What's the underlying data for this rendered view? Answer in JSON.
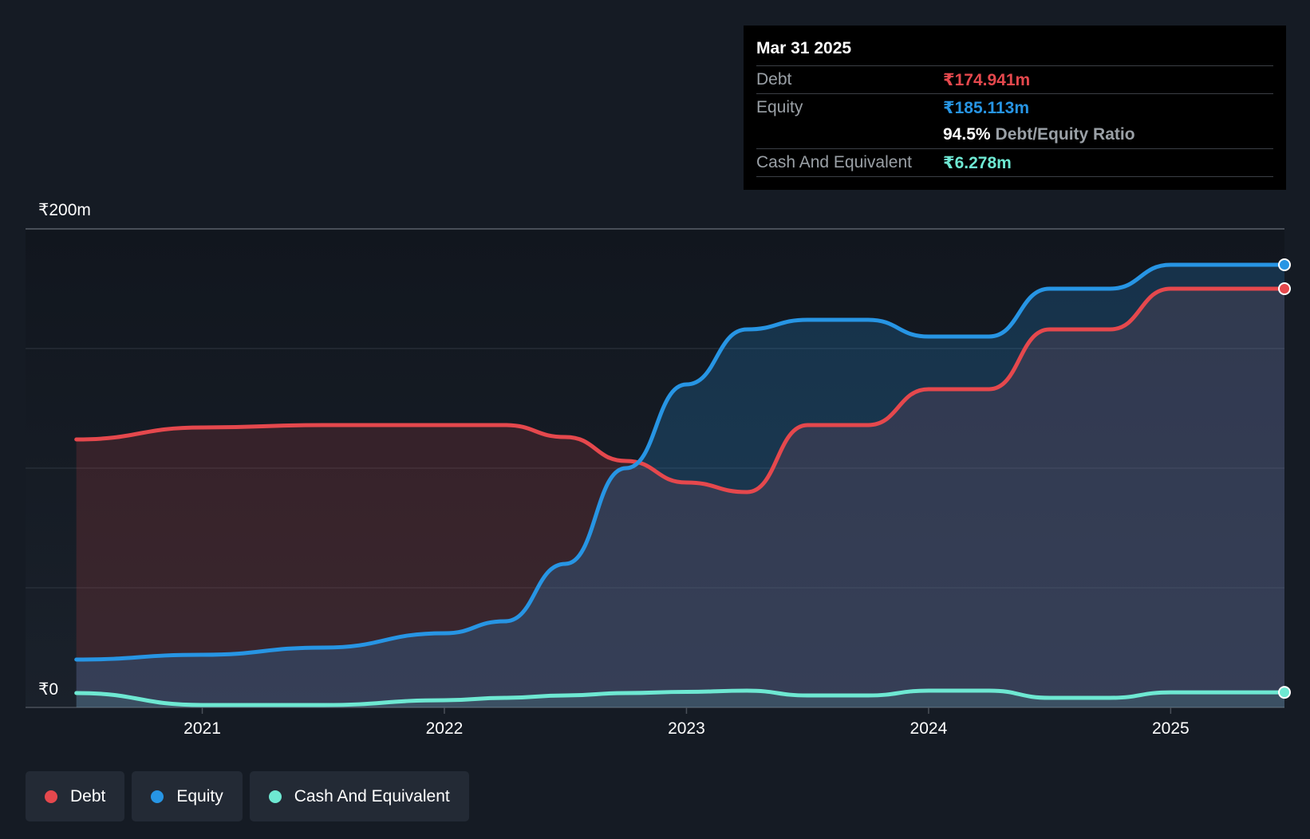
{
  "colors": {
    "debt": "#e5484d",
    "equity": "#2795e4",
    "cash": "#6ee8d2",
    "background": "#151b24"
  },
  "tooltip": {
    "date": "Mar 31 2025",
    "debt_label": "Debt",
    "debt_value": "₹174.941m",
    "equity_label": "Equity",
    "equity_value": "₹185.113m",
    "ratio_value": "94.5%",
    "ratio_label": "Debt/Equity Ratio",
    "cash_label": "Cash And Equivalent",
    "cash_value": "₹6.278m"
  },
  "legend": [
    {
      "label": "Debt",
      "color": "#e5484d"
    },
    {
      "label": "Equity",
      "color": "#2795e4"
    },
    {
      "label": "Cash And Equivalent",
      "color": "#6ee8d2"
    }
  ],
  "chart_data": {
    "type": "area",
    "y_labels": [
      "₹200m",
      "₹0"
    ],
    "ylim": [
      0,
      200
    ],
    "x_ticks": [
      "2021",
      "2022",
      "2023",
      "2024",
      "2025"
    ],
    "xlim": [
      2020.27,
      2025.47
    ],
    "grid": true,
    "series": [
      {
        "name": "Debt",
        "x": [
          2020.48,
          2021.0,
          2021.5,
          2022.0,
          2022.25,
          2022.5,
          2022.75,
          2023.0,
          2023.25,
          2023.5,
          2023.75,
          2024.0,
          2024.25,
          2024.5,
          2024.75,
          2025.0,
          2025.25
        ],
        "values": [
          112,
          117,
          118,
          118,
          118,
          113,
          103,
          94,
          90,
          118,
          118,
          133,
          133,
          158,
          158,
          175,
          175
        ]
      },
      {
        "name": "Equity",
        "x": [
          2020.48,
          2021.0,
          2021.5,
          2022.0,
          2022.25,
          2022.5,
          2022.75,
          2023.0,
          2023.25,
          2023.5,
          2023.75,
          2024.0,
          2024.25,
          2024.5,
          2024.75,
          2025.0,
          2025.25
        ],
        "values": [
          20,
          22,
          25,
          31,
          36,
          60,
          100,
          135,
          158,
          162,
          162,
          155,
          155,
          175,
          175,
          185,
          185
        ]
      },
      {
        "name": "Cash And Equivalent",
        "x": [
          2020.48,
          2021.0,
          2021.5,
          2022.0,
          2022.25,
          2022.5,
          2022.75,
          2023.0,
          2023.25,
          2023.5,
          2023.75,
          2024.0,
          2024.25,
          2024.5,
          2024.75,
          2025.0,
          2025.25
        ],
        "values": [
          6,
          1,
          1,
          3,
          4,
          5,
          6,
          6.5,
          7,
          5,
          5,
          7,
          7,
          4,
          4,
          6.3,
          6.3
        ]
      }
    ]
  }
}
